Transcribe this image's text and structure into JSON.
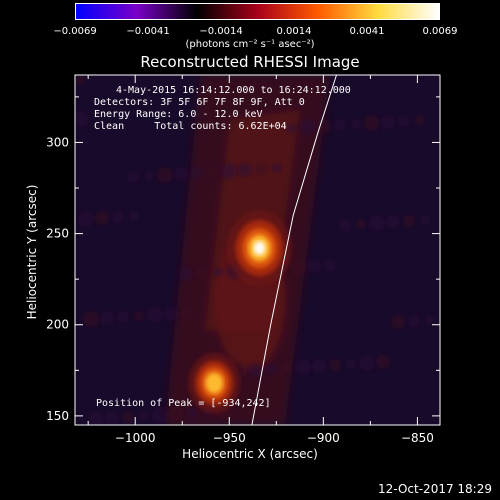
{
  "colorbar": {
    "ticks": [
      "−0.0069",
      "−0.0041",
      "−0.0014",
      "0.0014",
      "0.0041",
      "0.0069"
    ],
    "units": "(photons cm⁻² s⁻¹ asec⁻²)",
    "min": -0.0069,
    "max": 0.0069,
    "stops": [
      "#0000ff",
      "#7a00c8",
      "#000000",
      "#a8001a",
      "#ff5a00",
      "#ffdc40",
      "#ffffff"
    ]
  },
  "title": "Reconstructed RHESSI Image",
  "info": {
    "time_range": "4-May-2015 16:14:12.000 to 16:24:12.000",
    "detectors": "Detectors: 3F 5F 6F 7F 8F 9F, Att 0",
    "energy": "Energy Range: 6.0 - 12.0 keV",
    "clean": "Clean     Total counts: 6.62E+04",
    "peak": "Position of Peak = [-934,242]"
  },
  "footer": "12-Oct-2017 18:29",
  "chart_data": {
    "type": "heatmap",
    "title": "Reconstructed RHESSI Image",
    "xlabel": "Heliocentric X (arcsec)",
    "ylabel": "Heliocentric Y (arcsec)",
    "xlim": [
      -1032,
      -838
    ],
    "ylim": [
      145,
      337
    ],
    "xticks": [
      -1000,
      -950,
      -900,
      -850
    ],
    "yticks": [
      150,
      200,
      250,
      300
    ],
    "xtick_labels": [
      "−1000",
      "−950",
      "−900",
      "−850"
    ],
    "ytick_labels": [
      "150",
      "200",
      "250",
      "300"
    ],
    "sources": [
      {
        "x": -934,
        "y": 242,
        "peak": 0.0069
      },
      {
        "x": -958,
        "y": 168,
        "peak": 0.0038
      }
    ],
    "limb": [
      [
        -938,
        145
      ],
      [
        -928,
        200
      ],
      [
        -916,
        260
      ],
      [
        -903,
        305
      ],
      [
        -893,
        337
      ]
    ]
  }
}
